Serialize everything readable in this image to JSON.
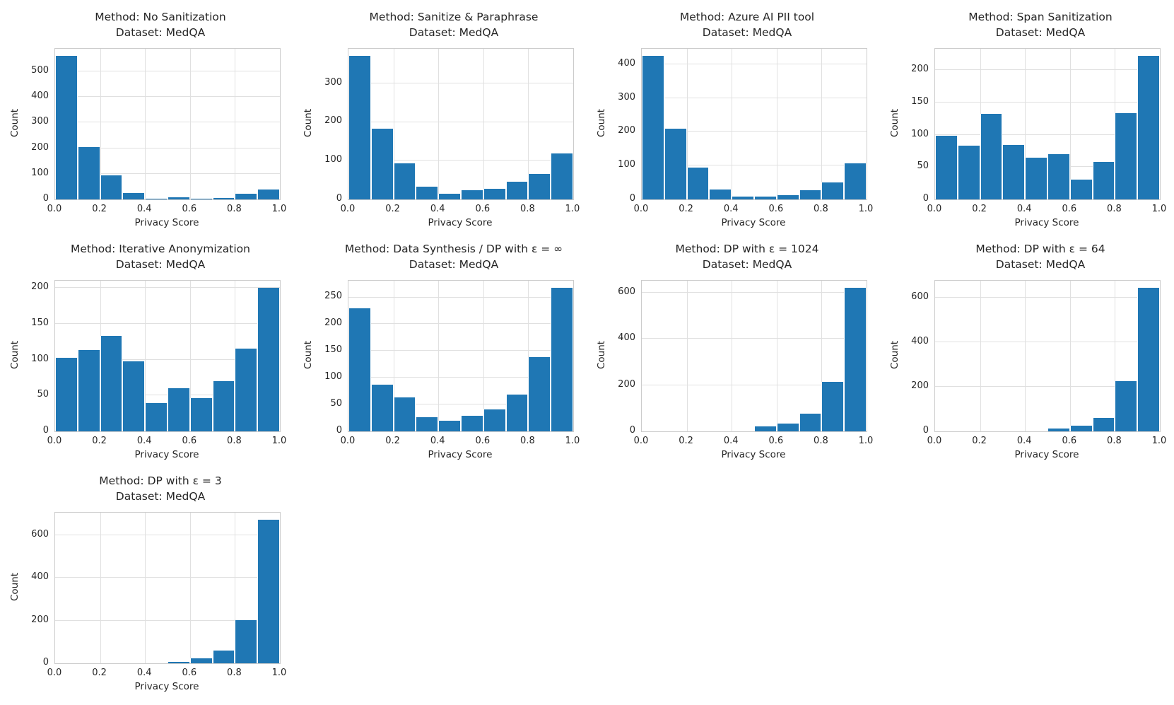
{
  "figure": {
    "background": "#ffffff",
    "bar_color": "#1f77b4",
    "grid_color": "#e0e0e0",
    "spine_color": "#cccccc",
    "text_color": "#262626"
  },
  "chart_data": [
    {
      "type": "bar",
      "title_line1": "Method: No Sanitization",
      "title_line2": "Dataset: MedQA",
      "xlabel": "Privacy Score",
      "ylabel": "Count",
      "bin_edges": [
        0.0,
        0.1,
        0.2,
        0.3,
        0.4,
        0.5,
        0.6,
        0.7,
        0.8,
        0.9,
        1.0
      ],
      "x_ticks": [
        "0.0",
        "0.2",
        "0.4",
        "0.6",
        "0.8",
        "1.0"
      ],
      "y_ticks": [
        0,
        100,
        200,
        300,
        400,
        500
      ],
      "ylim": [
        0,
        588
      ],
      "xlim": [
        0,
        1
      ],
      "grid": true,
      "values": [
        560,
        205,
        93,
        25,
        3,
        7,
        1,
        5,
        22,
        40
      ]
    },
    {
      "type": "bar",
      "title_line1": "Method: Sanitize & Paraphrase",
      "title_line2": "Dataset: MedQA",
      "xlabel": "Privacy Score",
      "ylabel": "Count",
      "bin_edges": [
        0.0,
        0.1,
        0.2,
        0.3,
        0.4,
        0.5,
        0.6,
        0.7,
        0.8,
        0.9,
        1.0
      ],
      "x_ticks": [
        "0.0",
        "0.2",
        "0.4",
        "0.6",
        "0.8",
        "1.0"
      ],
      "y_ticks": [
        0,
        100,
        200,
        300
      ],
      "ylim": [
        0,
        389
      ],
      "xlim": [
        0,
        1
      ],
      "grid": true,
      "values": [
        370,
        183,
        93,
        33,
        15,
        23,
        28,
        45,
        65,
        118
      ]
    },
    {
      "type": "bar",
      "title_line1": "Method: Azure AI PII tool",
      "title_line2": "Dataset: MedQA",
      "xlabel": "Privacy Score",
      "ylabel": "Count",
      "bin_edges": [
        0.0,
        0.1,
        0.2,
        0.3,
        0.4,
        0.5,
        0.6,
        0.7,
        0.8,
        0.9,
        1.0
      ],
      "x_ticks": [
        "0.0",
        "0.2",
        "0.4",
        "0.6",
        "0.8",
        "1.0"
      ],
      "y_ticks": [
        0,
        100,
        200,
        300,
        400
      ],
      "ylim": [
        0,
        446
      ],
      "xlim": [
        0,
        1
      ],
      "grid": true,
      "values": [
        425,
        210,
        95,
        30,
        8,
        8,
        12,
        28,
        50,
        107
      ]
    },
    {
      "type": "bar",
      "title_line1": "Method: Span Sanitization",
      "title_line2": "Dataset: MedQA",
      "xlabel": "Privacy Score",
      "ylabel": "Count",
      "bin_edges": [
        0.0,
        0.1,
        0.2,
        0.3,
        0.4,
        0.5,
        0.6,
        0.7,
        0.8,
        0.9,
        1.0
      ],
      "x_ticks": [
        "0.0",
        "0.2",
        "0.4",
        "0.6",
        "0.8",
        "1.0"
      ],
      "y_ticks": [
        0,
        50,
        100,
        150,
        200
      ],
      "ylim": [
        0,
        233
      ],
      "xlim": [
        0,
        1
      ],
      "grid": true,
      "values": [
        98,
        83,
        132,
        84,
        65,
        70,
        31,
        58,
        134,
        222
      ]
    },
    {
      "type": "bar",
      "title_line1": "Method: Iterative Anonymization",
      "title_line2": "Dataset: MedQA",
      "xlabel": "Privacy Score",
      "ylabel": "Count",
      "bin_edges": [
        0.0,
        0.1,
        0.2,
        0.3,
        0.4,
        0.5,
        0.6,
        0.7,
        0.8,
        0.9,
        1.0
      ],
      "x_ticks": [
        "0.0",
        "0.2",
        "0.4",
        "0.6",
        "0.8",
        "1.0"
      ],
      "y_ticks": [
        0,
        50,
        100,
        150,
        200
      ],
      "ylim": [
        0,
        210
      ],
      "xlim": [
        0,
        1
      ],
      "grid": true,
      "values": [
        103,
        113,
        133,
        98,
        39,
        60,
        46,
        70,
        115,
        200
      ]
    },
    {
      "type": "bar",
      "title_line1": "Method: Data Synthesis / DP with ε = ∞",
      "title_line2": "Dataset: MedQA",
      "xlabel": "Privacy Score",
      "ylabel": "Count",
      "bin_edges": [
        0.0,
        0.1,
        0.2,
        0.3,
        0.4,
        0.5,
        0.6,
        0.7,
        0.8,
        0.9,
        1.0
      ],
      "x_ticks": [
        "0.0",
        "0.2",
        "0.4",
        "0.6",
        "0.8",
        "1.0"
      ],
      "y_ticks": [
        0,
        50,
        100,
        150,
        200,
        250
      ],
      "ylim": [
        0,
        281
      ],
      "xlim": [
        0,
        1
      ],
      "grid": true,
      "values": [
        230,
        87,
        64,
        27,
        20,
        29,
        41,
        69,
        139,
        268
      ]
    },
    {
      "type": "bar",
      "title_line1": "Method: DP with ε = 1024",
      "title_line2": "Dataset: MedQA",
      "xlabel": "Privacy Score",
      "ylabel": "Count",
      "bin_edges": [
        0.0,
        0.1,
        0.2,
        0.3,
        0.4,
        0.5,
        0.6,
        0.7,
        0.8,
        0.9,
        1.0
      ],
      "x_ticks": [
        "0.0",
        "0.2",
        "0.4",
        "0.6",
        "0.8",
        "1.0"
      ],
      "y_ticks": [
        0,
        200,
        400,
        600
      ],
      "ylim": [
        0,
        651
      ],
      "xlim": [
        0,
        1
      ],
      "grid": true,
      "values": [
        0,
        0,
        0,
        0,
        0,
        22,
        33,
        75,
        215,
        620
      ]
    },
    {
      "type": "bar",
      "title_line1": "Method: DP with ε = 64",
      "title_line2": "Dataset: MedQA",
      "xlabel": "Privacy Score",
      "ylabel": "Count",
      "bin_edges": [
        0.0,
        0.1,
        0.2,
        0.3,
        0.4,
        0.5,
        0.6,
        0.7,
        0.8,
        0.9,
        1.0
      ],
      "x_ticks": [
        "0.0",
        "0.2",
        "0.4",
        "0.6",
        "0.8",
        "1.0"
      ],
      "y_ticks": [
        0,
        200,
        400,
        600
      ],
      "ylim": [
        0,
        677
      ],
      "xlim": [
        0,
        1
      ],
      "grid": true,
      "values": [
        0,
        0,
        0,
        0,
        0,
        13,
        25,
        60,
        225,
        645
      ]
    },
    {
      "type": "bar",
      "title_line1": "Method: DP with ε = 3",
      "title_line2": "Dataset: MedQA",
      "xlabel": "Privacy Score",
      "ylabel": "Count",
      "bin_edges": [
        0.0,
        0.1,
        0.2,
        0.3,
        0.4,
        0.5,
        0.6,
        0.7,
        0.8,
        0.9,
        1.0
      ],
      "x_ticks": [
        "0.0",
        "0.2",
        "0.4",
        "0.6",
        "0.8",
        "1.0"
      ],
      "y_ticks": [
        0,
        200,
        400,
        600
      ],
      "ylim": [
        0,
        706
      ],
      "xlim": [
        0,
        1
      ],
      "grid": true,
      "values": [
        0,
        0,
        0,
        0,
        0,
        8,
        22,
        60,
        203,
        672
      ]
    }
  ]
}
